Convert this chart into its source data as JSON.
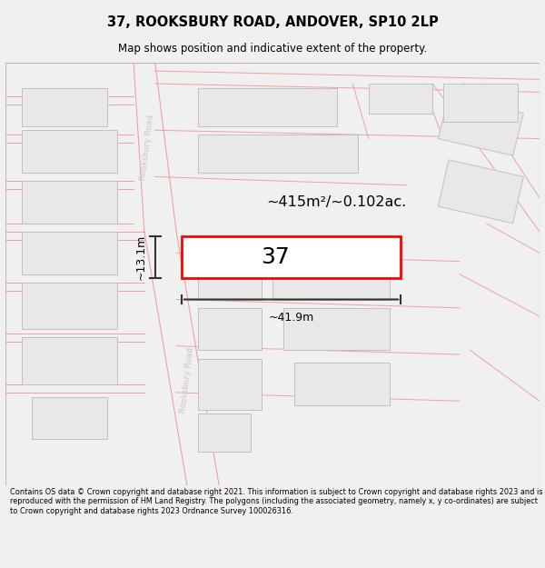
{
  "title": "37, ROOKSBURY ROAD, ANDOVER, SP10 2LP",
  "subtitle": "Map shows position and indicative extent of the property.",
  "footer": "Contains OS data © Crown copyright and database right 2021. This information is subject to Crown copyright and database rights 2023 and is reproduced with the permission of HM Land Registry. The polygons (including the associated geometry, namely x, y co-ordinates) are subject to Crown copyright and database rights 2023 Ordnance Survey 100026316.",
  "area_label": "~415m²/~0.102ac.",
  "width_label": "~41.9m",
  "height_label": "~13.1m",
  "property_number": "37",
  "map_bg": "#ffffff",
  "road_line_color": "#f0a0a0",
  "building_fill": "#e8e8e8",
  "building_outline": "#c0c0c0",
  "highlight_rect_color": "#ff0000",
  "road_label_color": "#c8c8c8",
  "dim_line_color": "#333333",
  "footer_bg": "#f0f0f0",
  "title_bg": "#f0f0f0"
}
